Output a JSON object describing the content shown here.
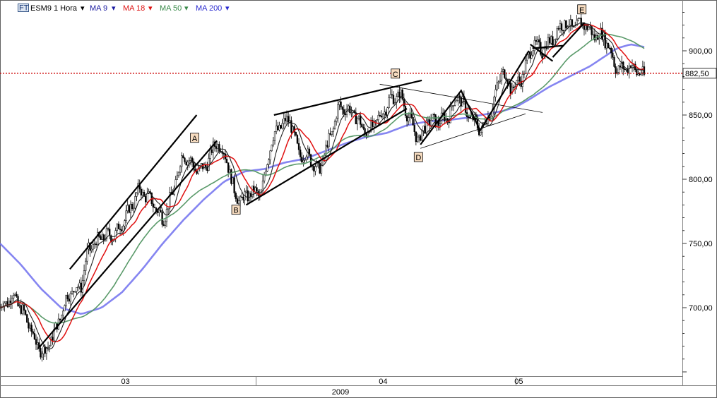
{
  "header": {
    "ticker_icon": "FT",
    "ticker_label": "ESM9 1 Hora",
    "ma9_label": "MA 9",
    "ma18_label": "MA 18",
    "ma50_label": "MA 50",
    "ma200_label": "MA 200"
  },
  "colors": {
    "ma9": "#222222",
    "ma18": "#e01010",
    "ma50": "#5a9a6a",
    "ma200": "#7070ee",
    "price_line": "#cc0000",
    "trend_lines": "#000000"
  },
  "chart_data": {
    "type": "candlestick",
    "title": "ESM9 1 Hora",
    "series": [
      {
        "name": "MA 9"
      },
      {
        "name": "MA 18"
      },
      {
        "name": "MA 50"
      },
      {
        "name": "MA 200"
      }
    ],
    "ylim": [
      640,
      935
    ],
    "y_ticks": [
      {
        "value": 700,
        "label": "700,00"
      },
      {
        "value": 750,
        "label": "750,00"
      },
      {
        "value": 800,
        "label": "800,00"
      },
      {
        "value": 850,
        "label": "850,00"
      },
      {
        "value": 900,
        "label": "900,00"
      }
    ],
    "current_price": {
      "value": 882.5,
      "label": "882,50"
    },
    "x_ticks": [
      {
        "t": 0.185,
        "label": "03"
      },
      {
        "t": 0.565,
        "label": "04"
      },
      {
        "t": 0.765,
        "label": "05"
      }
    ],
    "year_label": "2009",
    "anchors": [
      [
        0.0,
        700
      ],
      [
        0.02,
        710
      ],
      [
        0.04,
        690
      ],
      [
        0.055,
        670
      ],
      [
        0.065,
        665
      ],
      [
        0.08,
        680
      ],
      [
        0.1,
        710
      ],
      [
        0.12,
        718
      ],
      [
        0.13,
        745
      ],
      [
        0.15,
        755
      ],
      [
        0.17,
        757
      ],
      [
        0.19,
        775
      ],
      [
        0.205,
        792
      ],
      [
        0.225,
        782
      ],
      [
        0.24,
        768
      ],
      [
        0.255,
        790
      ],
      [
        0.27,
        820
      ],
      [
        0.29,
        807
      ],
      [
        0.3,
        808
      ],
      [
        0.31,
        818
      ],
      [
        0.32,
        830
      ],
      [
        0.335,
        815
      ],
      [
        0.345,
        790
      ],
      [
        0.355,
        783
      ],
      [
        0.37,
        790
      ],
      [
        0.385,
        788
      ],
      [
        0.4,
        830
      ],
      [
        0.415,
        843
      ],
      [
        0.428,
        846
      ],
      [
        0.44,
        820
      ],
      [
        0.455,
        818
      ],
      [
        0.47,
        806
      ],
      [
        0.49,
        838
      ],
      [
        0.5,
        857
      ],
      [
        0.52,
        852
      ],
      [
        0.54,
        836
      ],
      [
        0.56,
        848
      ],
      [
        0.575,
        862
      ],
      [
        0.59,
        866
      ],
      [
        0.605,
        845
      ],
      [
        0.618,
        830
      ],
      [
        0.63,
        845
      ],
      [
        0.645,
        845
      ],
      [
        0.66,
        848
      ],
      [
        0.675,
        866
      ],
      [
        0.69,
        850
      ],
      [
        0.71,
        838
      ],
      [
        0.725,
        855
      ],
      [
        0.74,
        885
      ],
      [
        0.755,
        870
      ],
      [
        0.77,
        880
      ],
      [
        0.785,
        905
      ],
      [
        0.8,
        900
      ],
      [
        0.815,
        910
      ],
      [
        0.83,
        922
      ],
      [
        0.845,
        918
      ],
      [
        0.86,
        922
      ],
      [
        0.875,
        912
      ],
      [
        0.89,
        912
      ],
      [
        0.9,
        900
      ],
      [
        0.91,
        885
      ],
      [
        0.93,
        888
      ],
      [
        0.95,
        880
      ]
    ],
    "ma200_curve": [
      [
        0.0,
        750
      ],
      [
        0.03,
        734
      ],
      [
        0.06,
        715
      ],
      [
        0.09,
        700
      ],
      [
        0.12,
        695
      ],
      [
        0.15,
        700
      ],
      [
        0.18,
        712
      ],
      [
        0.21,
        730
      ],
      [
        0.24,
        750
      ],
      [
        0.27,
        768
      ],
      [
        0.3,
        784
      ],
      [
        0.33,
        798
      ],
      [
        0.36,
        806
      ],
      [
        0.39,
        808
      ],
      [
        0.42,
        813
      ],
      [
        0.45,
        816
      ],
      [
        0.48,
        822
      ],
      [
        0.51,
        828
      ],
      [
        0.54,
        833
      ],
      [
        0.57,
        836
      ],
      [
        0.6,
        842
      ],
      [
        0.63,
        845
      ],
      [
        0.66,
        846
      ],
      [
        0.69,
        848
      ],
      [
        0.72,
        851
      ],
      [
        0.74,
        853
      ],
      [
        0.76,
        856
      ],
      [
        0.78,
        862
      ],
      [
        0.81,
        872
      ],
      [
        0.84,
        880
      ],
      [
        0.87,
        888
      ],
      [
        0.89,
        895
      ],
      [
        0.91,
        902
      ],
      [
        0.93,
        905
      ],
      [
        0.95,
        903
      ]
    ],
    "trend_lines": [
      {
        "points": [
          [
            0.056,
            668
          ],
          [
            0.32,
            830
          ]
        ],
        "bold": true
      },
      {
        "points": [
          [
            0.103,
            730
          ],
          [
            0.29,
            850
          ]
        ],
        "bold": true
      },
      {
        "points": [
          [
            0.363,
            780
          ],
          [
            0.6,
            855
          ]
        ],
        "bold": true
      },
      {
        "points": [
          [
            0.404,
            850
          ],
          [
            0.622,
            877
          ]
        ],
        "bold": true
      },
      {
        "points": [
          [
            0.56,
            874
          ],
          [
            0.8,
            852
          ]
        ],
        "bold": false
      },
      {
        "points": [
          [
            0.62,
            824
          ],
          [
            0.775,
            851
          ]
        ],
        "bold": false
      },
      {
        "points": [
          [
            0.62,
            827
          ],
          [
            0.68,
            869
          ],
          [
            0.708,
            838
          ],
          [
            0.78,
            900
          ]
        ],
        "bold": true
      },
      {
        "points": [
          [
            0.782,
            905
          ],
          [
            0.815,
            892
          ]
        ],
        "bold": true
      },
      {
        "points": [
          [
            0.785,
            902
          ],
          [
            0.83,
            904
          ]
        ],
        "bold": true
      },
      {
        "points": [
          [
            0.815,
            895
          ],
          [
            0.862,
            922
          ]
        ],
        "bold": true
      }
    ],
    "wave_labels": [
      {
        "label": "A",
        "t": 0.287,
        "v": 832
      },
      {
        "label": "B",
        "t": 0.348,
        "v": 776
      },
      {
        "label": "C",
        "t": 0.583,
        "v": 882
      },
      {
        "label": "D",
        "t": 0.617,
        "v": 817
      },
      {
        "label": "E",
        "t": 0.858,
        "v": 932
      }
    ]
  }
}
